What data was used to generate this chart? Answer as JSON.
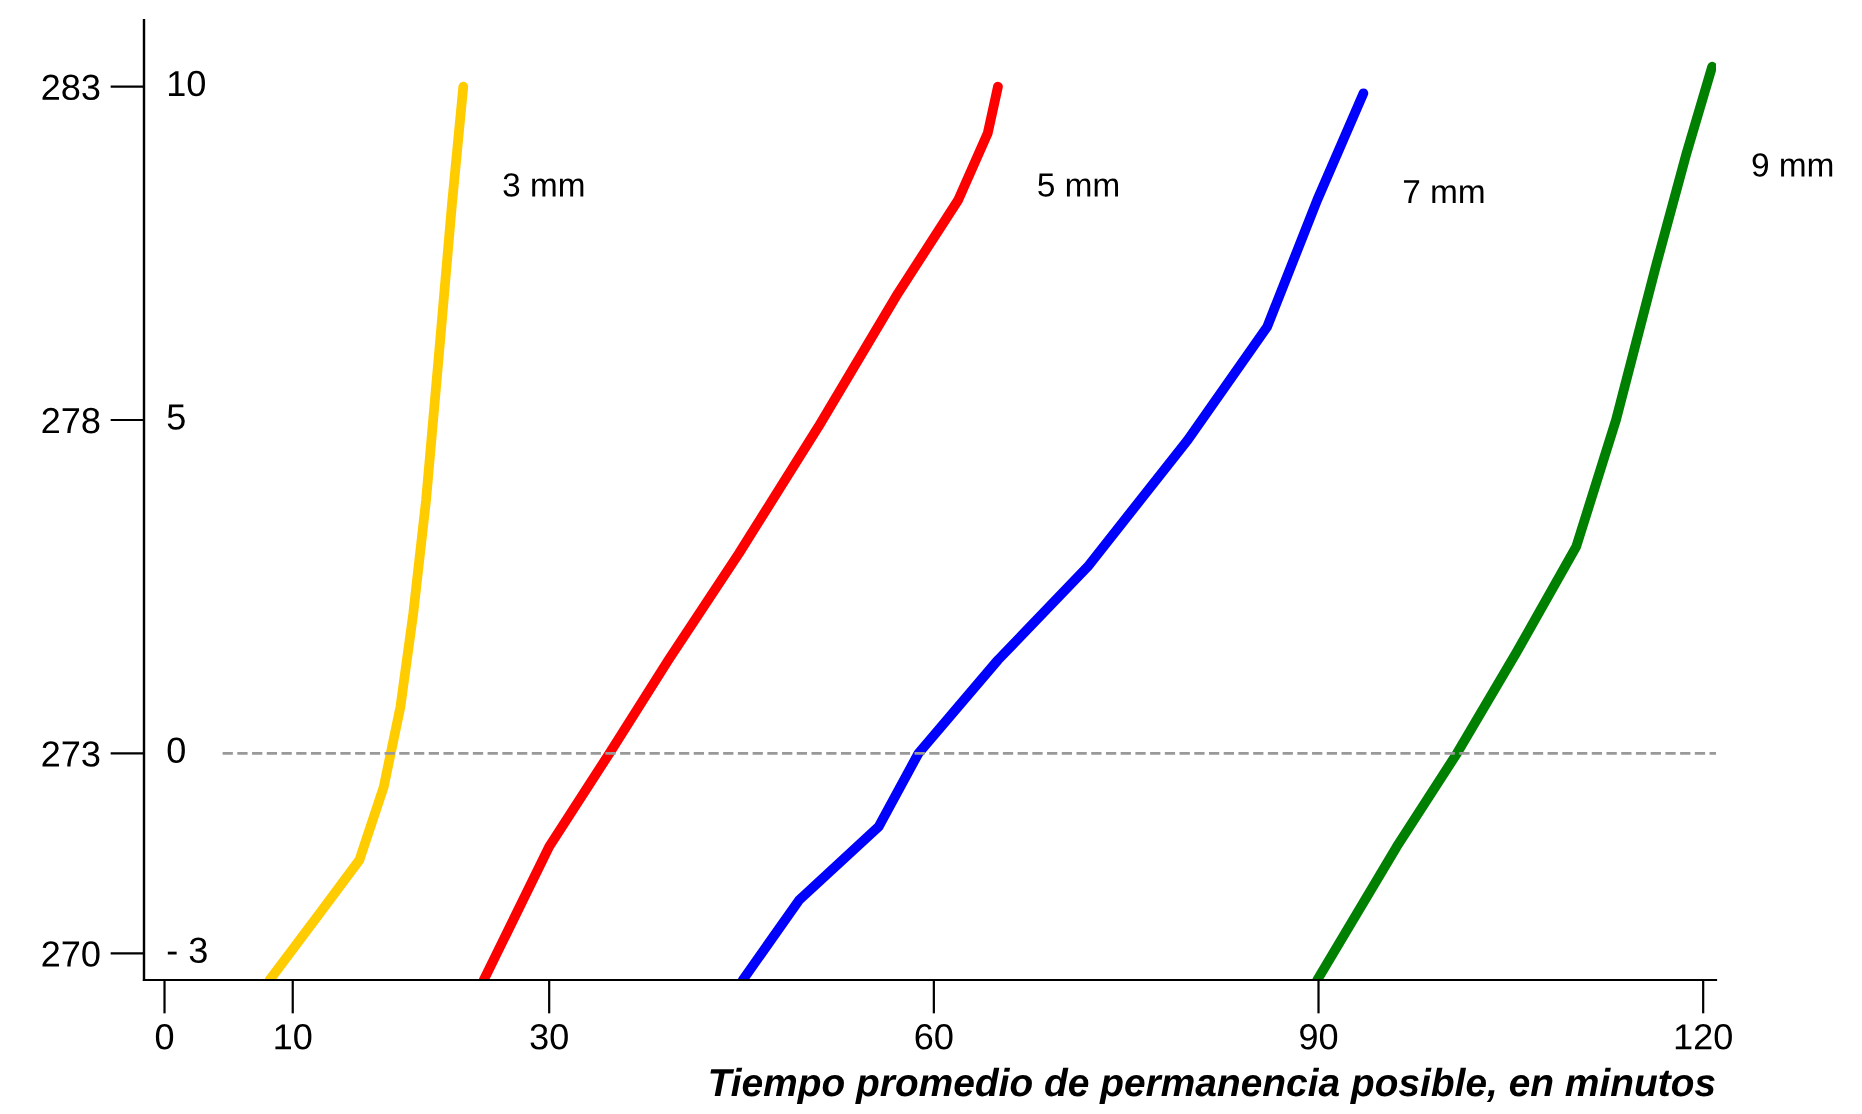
{
  "chart_data": {
    "type": "line",
    "xlabel": "Tiempo promedio de permanencia posible, en minutos",
    "xlim": [
      -1.6,
      121
    ],
    "xticks": [
      0,
      10,
      30,
      60,
      90,
      120
    ],
    "ylim": [
      269.6,
      284
    ],
    "yticks": [
      270,
      273,
      278,
      283
    ],
    "y2lim": [
      -3.4,
      11
    ],
    "y2ticks": [
      {
        "value": -3,
        "label": "- 3"
      },
      0,
      5,
      10
    ],
    "grid": false,
    "marker": "none",
    "line_style": "solid",
    "ref_lines": [
      {
        "axis": "y",
        "value": 273,
        "color": "#999999",
        "line_style": "dashed"
      }
    ],
    "series": [
      {
        "name": "3 mm",
        "color": "#ffcc00",
        "x": [
          8.2,
          12.1,
          15.2,
          17.1,
          18.4,
          19.4,
          20.4,
          21.5,
          22.4,
          23.3
        ],
        "values": [
          269.6,
          270.6,
          271.4,
          272.5,
          273.7,
          275.1,
          276.8,
          279.2,
          281.2,
          283
        ]
      },
      {
        "name": "5 mm",
        "color": "#ff0000",
        "x": [
          24.9,
          30,
          34.7,
          39.3,
          44.8,
          51,
          57.2,
          61.9,
          64.2,
          65
        ],
        "values": [
          269.6,
          271.6,
          273,
          274.4,
          276,
          277.9,
          279.9,
          281.3,
          282.3,
          283
        ]
      },
      {
        "name": "7 mm",
        "color": "#0000ff",
        "x": [
          45.1,
          49.5,
          55.7,
          58.8,
          65,
          72,
          79.8,
          86,
          89.9,
          93.5
        ],
        "values": [
          269.6,
          270.8,
          271.9,
          273,
          274.4,
          275.8,
          277.7,
          279.4,
          281.3,
          282.9
        ]
      },
      {
        "name": "9 mm",
        "color": "#008000",
        "x": [
          89.9,
          96.1,
          100.8,
          105.4,
          110.1,
          113.2,
          116.3,
          118.7,
          120.7
        ],
        "values": [
          269.6,
          271.6,
          273,
          274.5,
          276.1,
          278,
          280.3,
          282,
          283.3
        ]
      }
    ]
  }
}
